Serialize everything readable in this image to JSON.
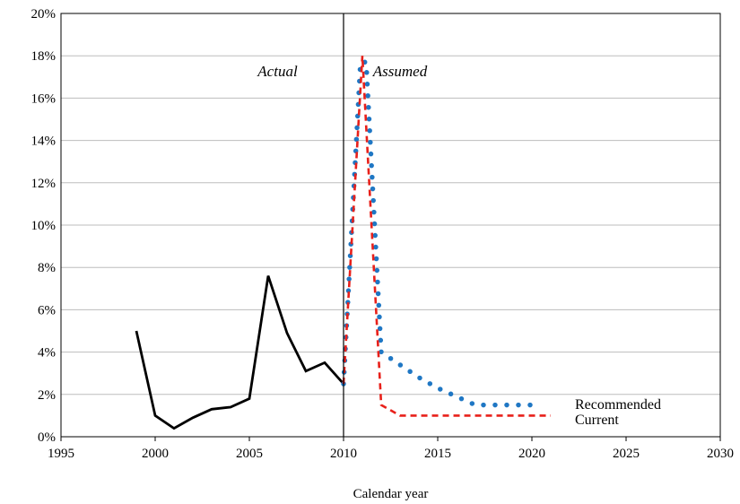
{
  "chart_data": {
    "type": "line",
    "title": "",
    "xlabel": "Calendar year",
    "ylabel": "",
    "xlim": [
      1995,
      2030
    ],
    "ylim": [
      0,
      0.2
    ],
    "x_ticks": [
      1995,
      2000,
      2005,
      2010,
      2015,
      2020,
      2025,
      2030
    ],
    "x_tick_labels": [
      "1995",
      "2000",
      "2005",
      "2010",
      "2015",
      "2020",
      "2025",
      "2030"
    ],
    "y_ticks": [
      0,
      0.02,
      0.04,
      0.06,
      0.08,
      0.1,
      0.12,
      0.14,
      0.16,
      0.18,
      0.2
    ],
    "y_tick_labels": [
      "0%",
      "2%",
      "4%",
      "6%",
      "8%",
      "10%",
      "12%",
      "14%",
      "16%",
      "18%",
      "20%"
    ],
    "grid": "horizontal",
    "divider_x": 2010,
    "region_labels": {
      "left": "Actual",
      "right": "Assumed"
    },
    "series": [
      {
        "key": "actual",
        "style": "solid",
        "color": "#000000",
        "points": [
          [
            1999,
            0.05
          ],
          [
            2000,
            0.01
          ],
          [
            2001,
            0.004
          ],
          [
            2002,
            0.009
          ],
          [
            2003,
            0.013
          ],
          [
            2004,
            0.014
          ],
          [
            2005,
            0.018
          ],
          [
            2006,
            0.076
          ],
          [
            2007,
            0.049
          ],
          [
            2008,
            0.031
          ],
          [
            2009,
            0.035
          ],
          [
            2010,
            0.025
          ]
        ]
      },
      {
        "key": "recommended",
        "name": "Recommended",
        "style": "dotted",
        "color": "#1f77c4",
        "points": [
          [
            2010,
            0.025
          ],
          [
            2010.9,
            0.177
          ],
          [
            2011.2,
            0.177
          ],
          [
            2012,
            0.04
          ],
          [
            2013,
            0.034
          ],
          [
            2014,
            0.028
          ],
          [
            2015,
            0.023
          ],
          [
            2016,
            0.019
          ],
          [
            2017,
            0.015
          ],
          [
            2018,
            0.015
          ],
          [
            2019,
            0.015
          ],
          [
            2020,
            0.015
          ],
          [
            2020.5,
            0.015
          ]
        ]
      },
      {
        "key": "current",
        "name": "Current",
        "style": "dashed",
        "color": "#e8201a",
        "points": [
          [
            2010,
            0.025
          ],
          [
            2011,
            0.18
          ],
          [
            2012,
            0.015
          ],
          [
            2013,
            0.01
          ],
          [
            2014,
            0.01
          ],
          [
            2015,
            0.01
          ],
          [
            2016,
            0.01
          ],
          [
            2017,
            0.01
          ],
          [
            2018,
            0.01
          ],
          [
            2019,
            0.01
          ],
          [
            2020,
            0.01
          ],
          [
            2021,
            0.01
          ]
        ]
      }
    ]
  }
}
